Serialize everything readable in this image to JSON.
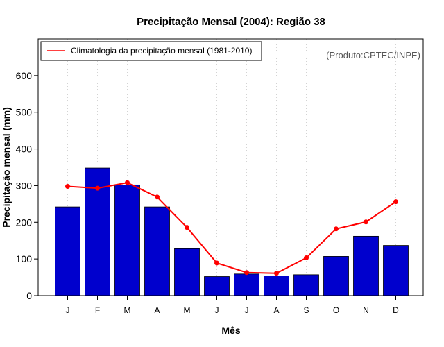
{
  "chart_data": {
    "type": "bar",
    "title": "Precipitação Mensal (2004): Região 38",
    "xlabel": "Mês",
    "ylabel": "Precipitação mensal (mm)",
    "ylim": [
      0,
      700
    ],
    "yticks": [
      0,
      100,
      200,
      300,
      400,
      500,
      600
    ],
    "categories": [
      "J",
      "F",
      "M",
      "A",
      "M",
      "J",
      "J",
      "A",
      "S",
      "O",
      "N",
      "D"
    ],
    "series": [
      {
        "name": "Precipitação mensal 2004",
        "type": "bar",
        "color": "#0000CD",
        "values": [
          242,
          348,
          302,
          242,
          128,
          52,
          59,
          54,
          57,
          107,
          162,
          137
        ]
      },
      {
        "name": "Climatologia da precipitação mensal (1981-2010)",
        "type": "line",
        "color": "#FF0000",
        "values": [
          298,
          293,
          308,
          269,
          186,
          89,
          63,
          61,
          103,
          182,
          201,
          256
        ]
      }
    ],
    "legend": {
      "position": "top-left",
      "label": "Climatologia da precipitação mensal (1981-2010)"
    },
    "annotation": "(Produto:CPTEC/INPE)",
    "grid": "vertical-dotted"
  }
}
